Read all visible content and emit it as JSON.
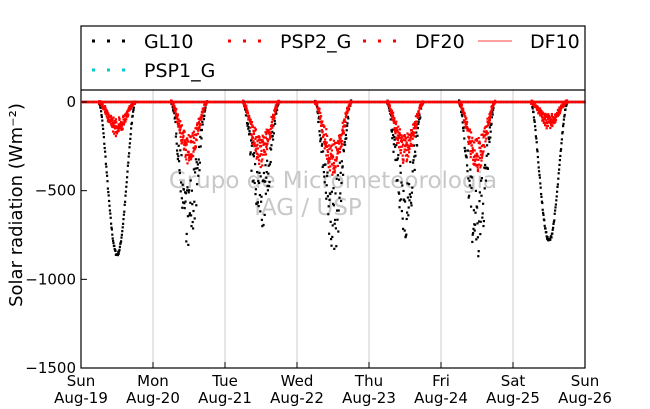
{
  "chart_data": {
    "type": "scatter",
    "ylabel": "Solar radiation ($Wm^{-2}$)",
    "ylim": [
      -1500,
      0
    ],
    "yticks": [
      0,
      -500,
      -1000,
      -1500
    ],
    "xlim": [
      "2014-08-19",
      "2014-08-26"
    ],
    "xtick_labels": [
      [
        "Sun",
        "Aug-19"
      ],
      [
        "Mon",
        "Aug-20"
      ],
      [
        "Tue",
        "Aug-21"
      ],
      [
        "Wed",
        "Aug-22"
      ],
      [
        "Thu",
        "Aug-23"
      ],
      [
        "Fri",
        "Aug-24"
      ],
      [
        "Sat",
        "Aug-25"
      ],
      [
        "Sun",
        "Aug-26"
      ]
    ],
    "grid": "vertical",
    "legend": {
      "placement": "top",
      "entries": [
        {
          "label": "GL10",
          "color": "#000000",
          "marker": "dot"
        },
        {
          "label": "PSP2_G",
          "color": "#ff0000",
          "marker": "dot"
        },
        {
          "label": "DF20",
          "color": "#ff0000",
          "marker": "dot"
        },
        {
          "label": "DF10",
          "color": "#ff6666",
          "marker": "line"
        },
        {
          "label": "PSP1_G",
          "color": "#00cccc",
          "marker": "dot"
        }
      ]
    },
    "watermark": [
      "Grupo de Micrometeorologia",
      "IAG / USP"
    ],
    "series": [
      {
        "name": "GL10",
        "color": "#000000",
        "daily_min": [
          {
            "day": "Aug-19",
            "peak": -860
          },
          {
            "day": "Aug-20",
            "peak": -790
          },
          {
            "day": "Aug-21",
            "peak": -710
          },
          {
            "day": "Aug-22",
            "peak": -840
          },
          {
            "day": "Aug-23",
            "peak": -740
          },
          {
            "day": "Aug-24",
            "peak": -890
          },
          {
            "day": "Aug-25",
            "peak": -780
          }
        ]
      },
      {
        "name": "PSP2_G",
        "color": "#ff0000",
        "daily_min": [
          {
            "day": "Aug-19",
            "peak": -180
          },
          {
            "day": "Aug-20",
            "peak": -330
          },
          {
            "day": "Aug-21",
            "peak": -350
          },
          {
            "day": "Aug-22",
            "peak": -400
          },
          {
            "day": "Aug-23",
            "peak": -340
          },
          {
            "day": "Aug-24",
            "peak": -380
          },
          {
            "day": "Aug-25",
            "peak": -140
          }
        ]
      },
      {
        "name": "DF20",
        "color": "#ff0000",
        "daily_min": [
          {
            "day": "Aug-19",
            "peak": -170
          },
          {
            "day": "Aug-20",
            "peak": -320
          },
          {
            "day": "Aug-21",
            "peak": -340
          },
          {
            "day": "Aug-22",
            "peak": -390
          },
          {
            "day": "Aug-23",
            "peak": -330
          },
          {
            "day": "Aug-24",
            "peak": -370
          },
          {
            "day": "Aug-25",
            "peak": -130
          }
        ]
      },
      {
        "name": "DF10",
        "color": "#ff6666",
        "daily_min": []
      },
      {
        "name": "PSP1_G",
        "color": "#00cccc",
        "daily_min": []
      }
    ]
  }
}
